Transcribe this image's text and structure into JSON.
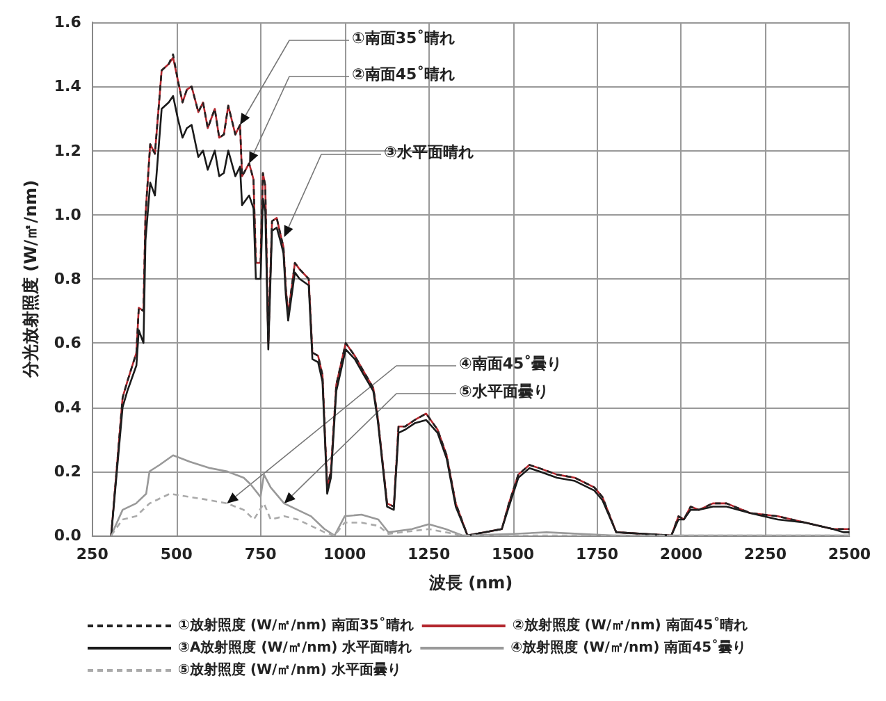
{
  "chart_data": {
    "type": "line",
    "xlabel": "波長 (nm)",
    "ylabel": "分光放射照度 (W/㎡/nm)",
    "xlim": [
      250,
      2500
    ],
    "xticks": [
      250,
      500,
      750,
      1000,
      1250,
      1500,
      1750,
      2000,
      2250,
      2500
    ],
    "ylim": [
      0,
      1.6
    ],
    "yticks": [
      {
        "value": 0,
        "label": "0.0"
      },
      {
        "value": 0.2,
        "label": "0.2"
      },
      {
        "value": 0.4,
        "label": "0.4"
      },
      {
        "value": 0.6,
        "label": "0.6"
      },
      {
        "value": 0.8,
        "label": "0.8"
      },
      {
        "value": 1.0,
        "label": "1.0"
      },
      {
        "value": 1.2,
        "label": "1.2"
      },
      {
        "value": 1.4,
        "label": "1.4"
      },
      {
        "value": 1.6,
        "label": "1.6"
      }
    ],
    "grid": true,
    "legend": "bottom",
    "marker": "none",
    "x": [
      306,
      340,
      354,
      381,
      388,
      402,
      408,
      422,
      436,
      456,
      477,
      490,
      504,
      518,
      531,
      545,
      565,
      579,
      593,
      614,
      627,
      641,
      654,
      675,
      689,
      695,
      716,
      729,
      736,
      750,
      757,
      764,
      773,
      784,
      798,
      811,
      818,
      825,
      832,
      852,
      866,
      893,
      904,
      921,
      934,
      948,
      959,
      975,
      1003,
      1030,
      1057,
      1085,
      1098,
      1126,
      1146,
      1160,
      1180,
      1208,
      1242,
      1276,
      1303,
      1330,
      1365,
      1467,
      1488,
      1516,
      1549,
      1578,
      1631,
      1684,
      1742,
      1766,
      1807,
      1971,
      1992,
      2008,
      2028,
      2053,
      2094,
      2135,
      2205,
      2287,
      2369,
      2451,
      2484,
      2500
    ],
    "series": [
      {
        "name": "①放射照度 (W/㎡/nm) 南面35˚晴れ",
        "color": "#222222",
        "line_style": "dashed",
        "values": [
          0,
          0.43,
          0.48,
          0.57,
          0.71,
          0.7,
          1.0,
          1.22,
          1.19,
          1.45,
          1.47,
          1.5,
          1.42,
          1.35,
          1.39,
          1.4,
          1.32,
          1.35,
          1.27,
          1.33,
          1.24,
          1.25,
          1.34,
          1.25,
          1.28,
          1.12,
          1.16,
          1.11,
          0.85,
          0.85,
          1.13,
          1.09,
          0.6,
          0.98,
          0.99,
          0.93,
          0.9,
          0.77,
          0.69,
          0.85,
          0.83,
          0.8,
          0.57,
          0.56,
          0.5,
          0.15,
          0.2,
          0.47,
          0.6,
          0.56,
          0.51,
          0.46,
          0.37,
          0.1,
          0.09,
          0.34,
          0.34,
          0.36,
          0.38,
          0.33,
          0.25,
          0.1,
          0,
          0.02,
          0.1,
          0.19,
          0.22,
          0.21,
          0.19,
          0.18,
          0.15,
          0.12,
          0.01,
          0,
          0.06,
          0.05,
          0.09,
          0.08,
          0.1,
          0.1,
          0.07,
          0.06,
          0.04,
          0.02,
          0.02,
          0.02
        ]
      },
      {
        "name": "②放射照度 (W/㎡/nm) 南面45˚晴れ",
        "color": "#b3262d",
        "line_style": "solid",
        "values": [
          0,
          0.43,
          0.48,
          0.57,
          0.71,
          0.7,
          1.0,
          1.22,
          1.19,
          1.45,
          1.47,
          1.49,
          1.42,
          1.35,
          1.39,
          1.4,
          1.32,
          1.35,
          1.27,
          1.33,
          1.24,
          1.25,
          1.34,
          1.25,
          1.28,
          1.12,
          1.16,
          1.11,
          0.85,
          0.85,
          1.13,
          1.09,
          0.6,
          0.98,
          0.99,
          0.93,
          0.9,
          0.77,
          0.69,
          0.85,
          0.83,
          0.8,
          0.57,
          0.56,
          0.5,
          0.15,
          0.2,
          0.47,
          0.6,
          0.56,
          0.51,
          0.46,
          0.37,
          0.1,
          0.09,
          0.34,
          0.34,
          0.36,
          0.38,
          0.33,
          0.25,
          0.1,
          0,
          0.02,
          0.1,
          0.19,
          0.22,
          0.21,
          0.19,
          0.18,
          0.15,
          0.12,
          0.01,
          0,
          0.06,
          0.05,
          0.09,
          0.08,
          0.1,
          0.1,
          0.07,
          0.06,
          0.04,
          0.02,
          0.02,
          0.02
        ]
      },
      {
        "name": "③A放射照度 (W/㎡/nm) 水平面晴れ",
        "color": "#1a1a1a",
        "line_style": "solid",
        "values": [
          0,
          0.4,
          0.45,
          0.53,
          0.64,
          0.6,
          0.92,
          1.1,
          1.06,
          1.33,
          1.35,
          1.37,
          1.3,
          1.24,
          1.27,
          1.28,
          1.18,
          1.2,
          1.14,
          1.2,
          1.12,
          1.13,
          1.2,
          1.12,
          1.15,
          1.03,
          1.06,
          1.02,
          0.8,
          0.8,
          1.05,
          1.01,
          0.58,
          0.95,
          0.96,
          0.91,
          0.88,
          0.75,
          0.67,
          0.82,
          0.8,
          0.78,
          0.55,
          0.54,
          0.48,
          0.13,
          0.18,
          0.45,
          0.58,
          0.55,
          0.5,
          0.45,
          0.36,
          0.09,
          0.08,
          0.32,
          0.33,
          0.35,
          0.36,
          0.32,
          0.24,
          0.09,
          0,
          0.02,
          0.09,
          0.18,
          0.21,
          0.2,
          0.18,
          0.17,
          0.14,
          0.11,
          0.01,
          0,
          0.05,
          0.05,
          0.08,
          0.08,
          0.09,
          0.09,
          0.07,
          0.05,
          0.04,
          0.02,
          0.01,
          0.01
        ]
      },
      {
        "name": "④放射照度 (W/㎡/nm) 南面45˚曇り",
        "color": "#999999",
        "line_style": "solid",
        "x": [
          306,
          340,
          380,
          410,
          420,
          450,
          490,
          540,
          600,
          650,
          700,
          720,
          750,
          760,
          780,
          820,
          860,
          900,
          940,
          970,
          1000,
          1050,
          1100,
          1130,
          1200,
          1250,
          1300,
          1350,
          1500,
          1600,
          1800,
          2500
        ],
        "values": [
          0,
          0.08,
          0.1,
          0.13,
          0.2,
          0.22,
          0.25,
          0.23,
          0.21,
          0.2,
          0.18,
          0.16,
          0.12,
          0.19,
          0.15,
          0.1,
          0.08,
          0.06,
          0.02,
          0,
          0.06,
          0.065,
          0.05,
          0.01,
          0.02,
          0.035,
          0.02,
          0,
          0.005,
          0.01,
          0,
          0
        ]
      },
      {
        "name": "⑤放射照度 (W/㎡/nm) 水平面曇り",
        "color": "#aaaaaa",
        "line_style": "dashed",
        "x": [
          306,
          340,
          380,
          420,
          480,
          540,
          600,
          650,
          700,
          730,
          760,
          780,
          820,
          860,
          900,
          940,
          970,
          1000,
          1050,
          1100,
          1130,
          1250,
          1350,
          2500
        ],
        "values": [
          0,
          0.05,
          0.06,
          0.1,
          0.13,
          0.12,
          0.11,
          0.1,
          0.08,
          0.05,
          0.1,
          0.05,
          0.06,
          0.05,
          0.03,
          0.01,
          0,
          0.04,
          0.04,
          0.03,
          0.005,
          0.02,
          0,
          0
        ]
      }
    ],
    "annotations": [
      {
        "text": "①南面35˚晴れ",
        "x": 689,
        "y": 1.28
      },
      {
        "text": "②南面45˚晴れ",
        "x": 716,
        "y": 1.16
      },
      {
        "text": "③水平面晴れ",
        "x": 820,
        "y": 0.93
      },
      {
        "text": "④南面45˚曇り",
        "x": 650,
        "y": 0.1
      },
      {
        "text": "⑤水平面曇り",
        "x": 820,
        "y": 0.1
      }
    ]
  }
}
